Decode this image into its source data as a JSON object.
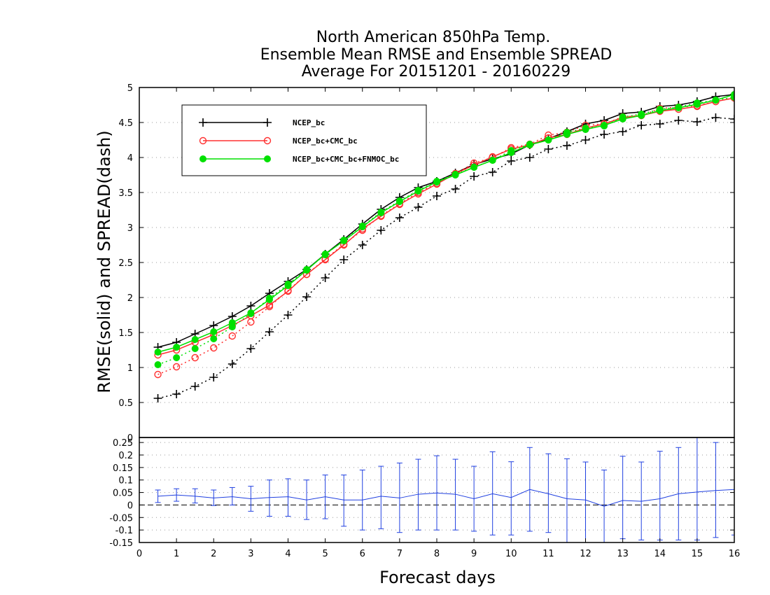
{
  "chart_data": {
    "type": "line",
    "title_lines": [
      "North American 850hPa Temp.",
      "Ensemble Mean RMSE and Ensemble SPREAD",
      "Average For 20151201 - 20160229"
    ],
    "xlabel": "Forecast days",
    "ylabel": "RMSE(solid) and SPREAD(dash)",
    "xlim": [
      0,
      16
    ],
    "x_ticks": [
      "0",
      "1",
      "2",
      "3",
      "4",
      "5",
      "6",
      "7",
      "8",
      "9",
      "10",
      "11",
      "12",
      "13",
      "14",
      "15",
      "16"
    ],
    "top_panel": {
      "ylim": [
        0,
        5
      ],
      "y_ticks": [
        "0",
        "0.5",
        "1",
        "1.5",
        "2",
        "2.5",
        "3",
        "3.5",
        "4",
        "4.5",
        "5"
      ],
      "grid": "horizontal dotted",
      "legend_position": "top-left",
      "x": [
        0.5,
        1,
        1.5,
        2,
        2.5,
        3,
        3.5,
        4,
        4.5,
        5,
        5.5,
        6,
        6.5,
        7,
        7.5,
        8,
        8.5,
        9,
        9.5,
        10,
        10.5,
        11,
        11.5,
        12,
        12.5,
        13,
        13.5,
        14,
        14.5,
        15,
        15.5,
        16
      ],
      "series": [
        {
          "name": "NCEP_bc",
          "color": "#000000",
          "marker": "plus",
          "rmse": [
            1.29,
            1.36,
            1.48,
            1.6,
            1.73,
            1.88,
            2.06,
            2.23,
            2.4,
            2.62,
            2.83,
            3.05,
            3.26,
            3.43,
            3.57,
            3.66,
            3.78,
            3.9,
            3.98,
            4.05,
            4.18,
            4.27,
            4.37,
            4.48,
            4.53,
            4.63,
            4.65,
            4.73,
            4.75,
            4.8,
            4.87,
            4.9
          ],
          "spread": [
            0.56,
            0.62,
            0.73,
            0.86,
            1.05,
            1.27,
            1.51,
            1.75,
            2.01,
            2.28,
            2.54,
            2.75,
            2.96,
            3.14,
            3.29,
            3.45,
            3.55,
            3.73,
            3.79,
            3.95,
            4.0,
            4.12,
            4.17,
            4.25,
            4.33,
            4.37,
            4.46,
            4.48,
            4.53,
            4.51,
            4.57,
            4.55
          ]
        },
        {
          "name": "NCEP_bc+CMC_bc",
          "color": "#ff3030",
          "marker": "open-circle",
          "rmse": [
            1.18,
            1.25,
            1.36,
            1.47,
            1.6,
            1.74,
            1.89,
            2.09,
            2.33,
            2.54,
            2.75,
            2.98,
            3.16,
            3.33,
            3.48,
            3.62,
            3.77,
            3.89,
            4.01,
            4.12,
            4.18,
            4.28,
            4.33,
            4.42,
            4.48,
            4.57,
            4.6,
            4.66,
            4.69,
            4.73,
            4.8,
            4.85
          ],
          "spread": [
            0.9,
            1.01,
            1.14,
            1.28,
            1.45,
            1.65,
            1.87,
            2.1,
            2.33,
            2.55,
            2.76,
            2.96,
            3.17,
            3.34,
            3.5,
            3.63,
            3.77,
            3.92,
            4.0,
            4.14,
            4.19,
            4.32,
            4.36,
            4.46,
            4.48,
            4.58,
            4.6,
            4.7,
            4.72,
            4.74,
            4.8,
            4.85
          ]
        },
        {
          "name": "NCEP_bc+CMC_bc+FNMOC_bc",
          "color": "#00e000",
          "marker": "filled-circle",
          "rmse": [
            1.22,
            1.29,
            1.4,
            1.51,
            1.64,
            1.78,
            1.97,
            2.17,
            2.39,
            2.62,
            2.81,
            3.01,
            3.21,
            3.37,
            3.52,
            3.65,
            3.75,
            3.86,
            3.96,
            4.07,
            4.18,
            4.25,
            4.33,
            4.4,
            4.46,
            4.55,
            4.6,
            4.67,
            4.71,
            4.76,
            4.82,
            4.9
          ],
          "spread": [
            1.04,
            1.14,
            1.27,
            1.41,
            1.58,
            1.77,
            1.99,
            2.19,
            2.4,
            2.61,
            2.82,
            3.02,
            3.22,
            3.38,
            3.53,
            3.66,
            3.76,
            3.86,
            3.96,
            4.1,
            4.19,
            4.25,
            4.36,
            4.42,
            4.45,
            4.58,
            4.62,
            4.69,
            4.72,
            4.78,
            4.82,
            4.86
          ]
        }
      ]
    },
    "bottom_panel": {
      "ylim": [
        -0.15,
        0.27
      ],
      "y_ticks": [
        "-0.15",
        "-0.1",
        "-0.05",
        "0",
        "0.05",
        "0.1",
        "0.15",
        "0.2",
        "0.25"
      ],
      "grid": "horizontal dotted",
      "color": "#2040e0",
      "x": [
        0.5,
        1,
        1.5,
        2,
        2.5,
        3,
        3.5,
        4,
        4.5,
        5,
        5.5,
        6,
        6.5,
        7,
        7.5,
        8,
        8.5,
        9,
        9.5,
        10,
        10.5,
        11,
        11.5,
        12,
        12.5,
        13,
        13.5,
        14,
        14.5,
        15,
        15.5,
        16
      ],
      "mean": [
        0.035,
        0.04,
        0.035,
        0.028,
        0.033,
        0.025,
        0.03,
        0.033,
        0.02,
        0.033,
        0.02,
        0.02,
        0.035,
        0.028,
        0.043,
        0.048,
        0.043,
        0.025,
        0.045,
        0.03,
        0.062,
        0.045,
        0.025,
        0.02,
        -0.005,
        0.018,
        0.015,
        0.025,
        0.045,
        0.052,
        0.058,
        0.062
      ],
      "upper": [
        0.06,
        0.065,
        0.065,
        0.06,
        0.07,
        0.075,
        0.1,
        0.105,
        0.1,
        0.12,
        0.12,
        0.14,
        0.155,
        0.168,
        0.183,
        0.197,
        0.183,
        0.155,
        0.213,
        0.173,
        0.23,
        0.205,
        0.185,
        0.172,
        0.14,
        0.195,
        0.172,
        0.215,
        0.23,
        0.27,
        0.25,
        0.27
      ],
      "lower": [
        0.01,
        0.015,
        0.008,
        -0.002,
        0.0,
        -0.025,
        -0.045,
        -0.045,
        -0.058,
        -0.055,
        -0.085,
        -0.1,
        -0.095,
        -0.11,
        -0.1,
        -0.1,
        -0.1,
        -0.105,
        -0.12,
        -0.12,
        -0.105,
        -0.11,
        -0.15,
        -0.15,
        -0.155,
        -0.135,
        -0.14,
        -0.14,
        -0.14,
        -0.14,
        -0.13,
        -0.12
      ]
    }
  }
}
